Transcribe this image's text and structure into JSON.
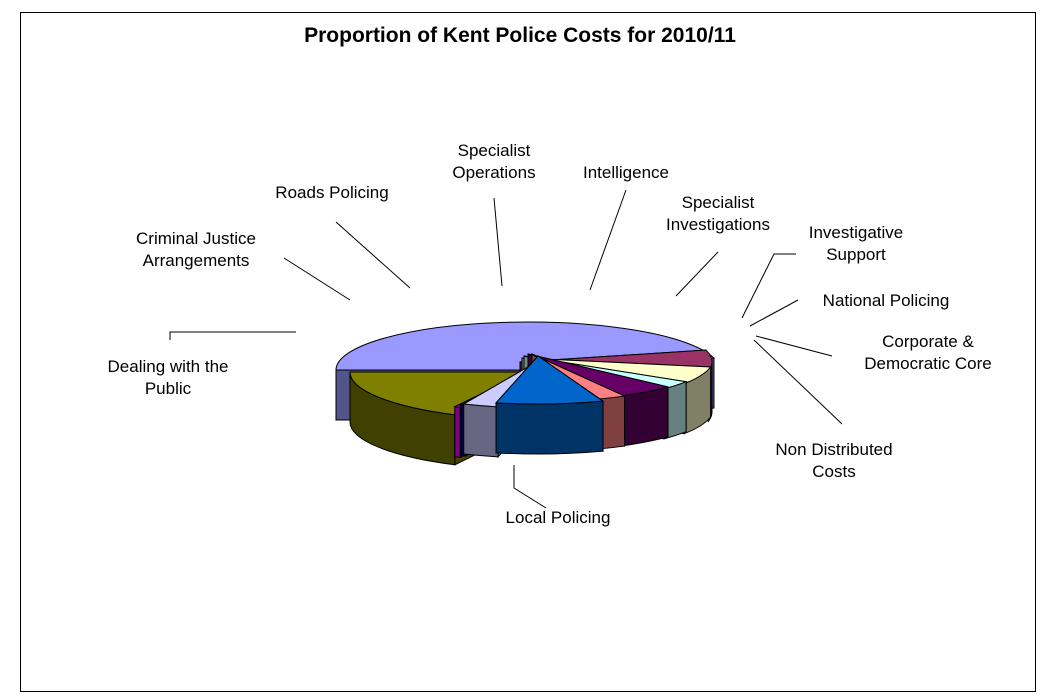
{
  "chart_data": {
    "type": "pie",
    "style": "3d-exploded",
    "title": "Proportion of Kent Police Costs for 2010/11",
    "legend": "none",
    "slices": [
      {
        "label": [
          "Local Policing"
        ],
        "value": 46.0,
        "color": "#9999ff"
      },
      {
        "label": [
          "Dealing with the",
          "Public"
        ],
        "value": 7.0,
        "color": "#993366"
      },
      {
        "label": [
          "Criminal Justice",
          "Arrangements"
        ],
        "value": 6.0,
        "color": "#ffffcc"
      },
      {
        "label": [
          "Roads Policing"
        ],
        "value": 3.0,
        "color": "#ccffff"
      },
      {
        "label": [
          "Specialist",
          "Operations"
        ],
        "value": 5.0,
        "color": "#660066"
      },
      {
        "label": [
          "Intelligence"
        ],
        "value": 2.5,
        "color": "#ff8080"
      },
      {
        "label": [
          "Specialist",
          "Investigations"
        ],
        "value": 9.0,
        "color": "#0066cc"
      },
      {
        "label": [
          "Investigative",
          "Support"
        ],
        "value": 3.0,
        "color": "#ccccff"
      },
      {
        "label": [
          "National Policing"
        ],
        "value": 0.5,
        "color": "#000080"
      },
      {
        "label": [
          "Corporate &",
          "Democratic Core"
        ],
        "value": 0.5,
        "color": "#ff00ff"
      },
      {
        "label": [
          "Non Distributed",
          "Costs"
        ],
        "value": 17.5,
        "color": "#808000"
      }
    ]
  }
}
